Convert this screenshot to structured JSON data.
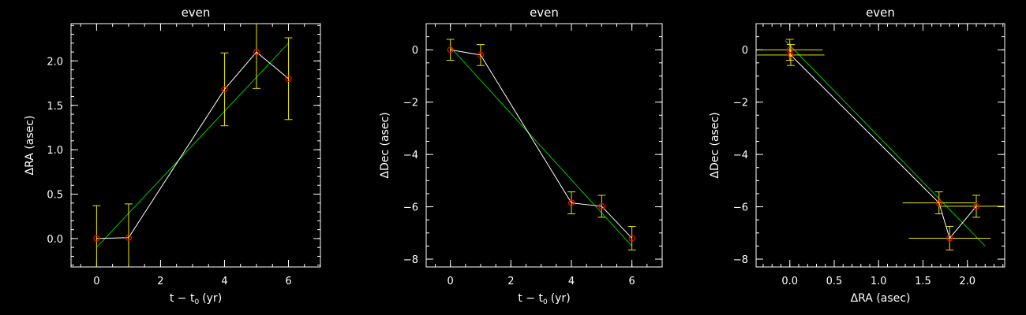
{
  "colors": {
    "background": "#000000",
    "axes": "#ffffff",
    "data_line": "#ffffff",
    "fit_line": "#00c800",
    "error_bar": "#e6e600",
    "marker": "#ff0000"
  },
  "chart_data": [
    {
      "type": "line",
      "title": "even",
      "xlabel_main": "t − t",
      "xlabel_sub": "0",
      "xlabel_unit": "(yr)",
      "ylabel": "ΔRA (asec)",
      "xlim": [
        -0.8,
        7.0
      ],
      "ylim": [
        -0.32,
        2.42
      ],
      "xticks": [
        0,
        2,
        4,
        6
      ],
      "xtick_labels": [
        "0",
        "2",
        "4",
        "6"
      ],
      "x_minor_step": 0.5,
      "yticks": [
        0.0,
        0.5,
        1.0,
        1.5,
        2.0
      ],
      "ytick_labels": [
        "0.0",
        "0.5",
        "1.0",
        "1.5",
        "2.0"
      ],
      "y_minor_step": 0.1,
      "series": [
        {
          "x": [
            0,
            1,
            4,
            5,
            6
          ],
          "y": [
            0.0,
            0.01,
            1.68,
            2.1,
            1.8
          ],
          "yerr": [
            0.37,
            0.38,
            0.41,
            0.41,
            0.46
          ]
        }
      ],
      "fit_line": [
        [
          0.0,
          -0.1
        ],
        [
          6.0,
          2.2
        ]
      ]
    },
    {
      "type": "line",
      "title": "even",
      "xlabel_main": "t − t",
      "xlabel_sub": "0",
      "xlabel_unit": "(yr)",
      "ylabel": "ΔDec (asec)",
      "xlim": [
        -0.8,
        7.0
      ],
      "ylim": [
        -8.3,
        1.0
      ],
      "xticks": [
        0,
        2,
        4,
        6
      ],
      "xtick_labels": [
        "0",
        "2",
        "4",
        "6"
      ],
      "x_minor_step": 0.5,
      "yticks": [
        0,
        -2,
        -4,
        -6,
        -8
      ],
      "ytick_labels": [
        "0",
        "−2",
        "−4",
        "−6",
        "−8"
      ],
      "y_minor_step": 0.5,
      "series": [
        {
          "x": [
            0,
            1,
            4,
            5,
            6
          ],
          "y": [
            0.0,
            -0.2,
            -5.85,
            -5.98,
            -7.2
          ],
          "yerr": [
            0.4,
            0.4,
            0.42,
            0.42,
            0.45
          ]
        }
      ],
      "fit_line": [
        [
          0.0,
          0.1
        ],
        [
          6.0,
          -7.5
        ]
      ]
    },
    {
      "type": "line",
      "title": "even",
      "xlabel_main": "ΔRA (asec)",
      "ylabel": "ΔDec (asec)",
      "xlim": [
        -0.38,
        2.42
      ],
      "ylim": [
        -8.3,
        1.0
      ],
      "xticks": [
        0.0,
        0.5,
        1.0,
        1.5,
        2.0
      ],
      "xtick_labels": [
        "0.0",
        "0.5",
        "1.0",
        "1.5",
        "2.0"
      ],
      "x_minor_step": 0.1,
      "yticks": [
        0,
        -2,
        -4,
        -6,
        -8
      ],
      "ytick_labels": [
        "0",
        "−2",
        "−4",
        "−6",
        "−8"
      ],
      "y_minor_step": 0.5,
      "series": [
        {
          "order": [
            0,
            1,
            2,
            4,
            3
          ],
          "x": [
            0.0,
            0.01,
            1.68,
            2.1,
            1.8
          ],
          "y": [
            0.0,
            -0.2,
            -5.85,
            -5.98,
            -7.2
          ],
          "xerr": [
            0.37,
            0.38,
            0.41,
            0.41,
            0.46
          ],
          "yerr": [
            0.4,
            0.4,
            0.42,
            0.42,
            0.45
          ]
        }
      ],
      "fit_line": [
        [
          -0.05,
          0.35
        ],
        [
          2.2,
          -7.5
        ]
      ]
    }
  ]
}
